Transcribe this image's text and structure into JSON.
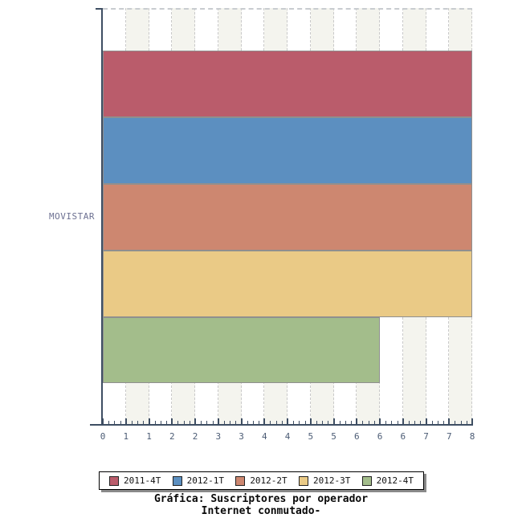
{
  "chart_data": {
    "type": "bar",
    "orientation": "horizontal",
    "title": "Gráfica: Suscriptores por operador",
    "subtitle": "Internet conmutado-",
    "categories": [
      "MOVISTAR"
    ],
    "series": [
      {
        "name": "2011-4T",
        "values": [
          8
        ],
        "color": "#BA5C6B"
      },
      {
        "name": "2012-1T",
        "values": [
          8
        ],
        "color": "#5C8FC0"
      },
      {
        "name": "2012-2T",
        "values": [
          8
        ],
        "color": "#CD8770"
      },
      {
        "name": "2012-3T",
        "values": [
          8
        ],
        "color": "#EACA86"
      },
      {
        "name": "2012-4T",
        "values": [
          6
        ],
        "color": "#A3BD8B"
      }
    ],
    "xlim": [
      0,
      8
    ],
    "x_tick_labels": [
      "0",
      "1",
      "1",
      "2",
      "2",
      "3",
      "3",
      "4",
      "4",
      "5",
      "5",
      "6",
      "6",
      "6",
      "7",
      "7",
      "8"
    ],
    "legend_position": "bottom",
    "grid": "vertical dashed lines with alternating white/beige column bands"
  },
  "style_colors": {
    "axis": "#3E4E63",
    "tick_label": "#4C5C75",
    "category_label": "#6D7192",
    "band": "#F4F4EE",
    "gridline": "#CACACA",
    "bar_border": "#8F8F8F",
    "legend_shadow": "#8A8A8A"
  }
}
